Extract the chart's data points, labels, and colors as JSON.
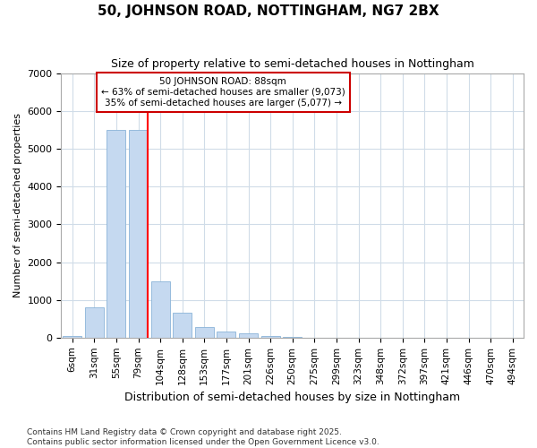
{
  "title": "50, JOHNSON ROAD, NOTTINGHAM, NG7 2BX",
  "subtitle": "Size of property relative to semi-detached houses in Nottingham",
  "xlabel": "Distribution of semi-detached houses by size in Nottingham",
  "ylabel": "Number of semi-detached properties",
  "categories": [
    "6sqm",
    "31sqm",
    "55sqm",
    "79sqm",
    "104sqm",
    "128sqm",
    "153sqm",
    "177sqm",
    "201sqm",
    "226sqm",
    "250sqm",
    "275sqm",
    "299sqm",
    "323sqm",
    "348sqm",
    "372sqm",
    "397sqm",
    "421sqm",
    "446sqm",
    "470sqm",
    "494sqm"
  ],
  "values": [
    50,
    800,
    5500,
    5500,
    1500,
    670,
    290,
    160,
    110,
    50,
    20,
    0,
    0,
    0,
    0,
    0,
    0,
    0,
    0,
    0,
    0
  ],
  "bar_color": "#c5d9f0",
  "bar_edge_color": "#8ab4d8",
  "grid_color": "#d0dce8",
  "bg_color": "#ffffff",
  "plot_bg_color": "#ffffff",
  "redline_index": 3,
  "annotation_title": "50 JOHNSON ROAD: 88sqm",
  "annotation_line1": "← 63% of semi-detached houses are smaller (9,073)",
  "annotation_line2": "35% of semi-detached houses are larger (5,077) →",
  "annotation_box_facecolor": "#ffffff",
  "annotation_box_edgecolor": "#cc0000",
  "footer_line1": "Contains HM Land Registry data © Crown copyright and database right 2025.",
  "footer_line2": "Contains public sector information licensed under the Open Government Licence v3.0.",
  "ylim": [
    0,
    7000
  ],
  "yticks": [
    0,
    1000,
    2000,
    3000,
    4000,
    5000,
    6000,
    7000
  ]
}
